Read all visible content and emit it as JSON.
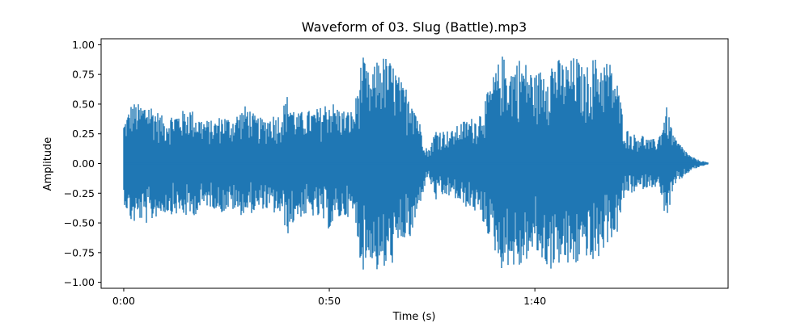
{
  "chart_data": {
    "type": "line",
    "title": "Waveform of 03. Slug (Battle).mp3",
    "xlabel": "Time (s)",
    "ylabel": "Amplitude",
    "xlim": [
      -5.5,
      147
    ],
    "ylim": [
      -1.05,
      1.05
    ],
    "xticks": [
      {
        "value": 0,
        "label": "0:00"
      },
      {
        "value": 50,
        "label": "0:50"
      },
      {
        "value": 100,
        "label": "1:40"
      }
    ],
    "yticks": [
      {
        "value": 1.0,
        "label": "1.00"
      },
      {
        "value": 0.75,
        "label": "0.75"
      },
      {
        "value": 0.5,
        "label": "0.50"
      },
      {
        "value": 0.25,
        "label": "0.25"
      },
      {
        "value": 0.0,
        "label": "0.00"
      },
      {
        "value": -0.25,
        "label": "−0.25"
      },
      {
        "value": -0.5,
        "label": "−0.50"
      },
      {
        "value": -0.75,
        "label": "−0.75"
      },
      {
        "value": -1.0,
        "label": "−1.00"
      }
    ],
    "grid": false,
    "series": [
      {
        "color": "#1f77b4",
        "envelope_x": [
          0,
          2,
          4,
          6,
          8,
          10,
          12,
          14,
          16,
          18,
          20,
          22,
          24,
          26,
          28,
          30,
          32,
          34,
          36,
          38,
          40,
          42,
          44,
          46,
          48,
          50,
          52,
          54,
          56,
          58,
          60,
          62,
          64,
          66,
          68,
          70,
          72,
          74,
          76,
          78,
          80,
          82,
          84,
          86,
          88,
          90,
          92,
          94,
          96,
          98,
          100,
          102,
          104,
          106,
          108,
          110,
          112,
          114,
          116,
          118,
          120,
          122,
          124,
          126,
          128,
          130,
          132,
          134,
          136,
          138,
          140,
          142
        ],
        "envelope_max": [
          0.35,
          0.52,
          0.5,
          0.53,
          0.45,
          0.38,
          0.43,
          0.44,
          0.48,
          0.4,
          0.37,
          0.36,
          0.42,
          0.38,
          0.44,
          0.5,
          0.4,
          0.38,
          0.42,
          0.42,
          0.6,
          0.42,
          0.45,
          0.45,
          0.48,
          0.55,
          0.48,
          0.45,
          0.45,
          0.92,
          0.72,
          0.92,
          0.9,
          0.82,
          0.65,
          0.65,
          0.35,
          0.1,
          0.3,
          0.28,
          0.28,
          0.35,
          0.38,
          0.4,
          0.55,
          0.75,
          0.92,
          0.82,
          0.9,
          0.85,
          0.75,
          0.82,
          0.9,
          0.88,
          0.85,
          0.92,
          0.78,
          0.9,
          0.88,
          0.88,
          0.7,
          0.3,
          0.25,
          0.25,
          0.2,
          0.22,
          0.48,
          0.22,
          0.14,
          0.06,
          0.03,
          0.01
        ],
        "envelope_min": [
          -0.33,
          -0.52,
          -0.48,
          -0.52,
          -0.45,
          -0.42,
          -0.43,
          -0.44,
          -0.46,
          -0.42,
          -0.36,
          -0.38,
          -0.42,
          -0.38,
          -0.44,
          -0.42,
          -0.42,
          -0.38,
          -0.42,
          -0.44,
          -0.6,
          -0.46,
          -0.45,
          -0.45,
          -0.48,
          -0.56,
          -0.48,
          -0.45,
          -0.45,
          -0.92,
          -0.8,
          -0.95,
          -0.9,
          -0.82,
          -0.65,
          -0.65,
          -0.35,
          -0.1,
          -0.32,
          -0.28,
          -0.28,
          -0.35,
          -0.38,
          -0.42,
          -0.55,
          -0.72,
          -0.9,
          -0.85,
          -0.92,
          -0.82,
          -0.75,
          -0.85,
          -0.9,
          -0.85,
          -0.88,
          -0.88,
          -0.75,
          -0.88,
          -0.78,
          -0.65,
          -0.6,
          -0.25,
          -0.25,
          -0.22,
          -0.2,
          -0.2,
          -0.48,
          -0.2,
          -0.12,
          -0.06,
          -0.03,
          -0.01
        ]
      }
    ]
  }
}
